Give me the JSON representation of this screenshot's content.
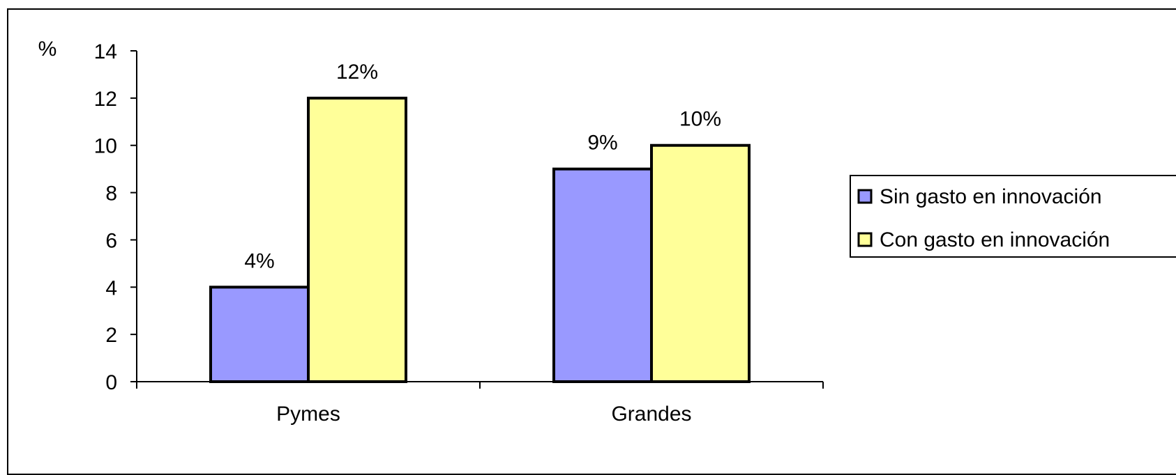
{
  "chart_data": {
    "type": "bar",
    "ylabel": "%",
    "ylim": [
      0,
      14
    ],
    "yticks": [
      0,
      2,
      4,
      6,
      8,
      10,
      12,
      14
    ],
    "categories": [
      "Pymes",
      "Grandes"
    ],
    "series": [
      {
        "name": "Sin gasto en innovación",
        "color": "#9999ff",
        "values": [
          4,
          9
        ],
        "labels": [
          "4%",
          "9%"
        ]
      },
      {
        "name": "Con gasto en innovación",
        "color": "#ffff99",
        "values": [
          12,
          10
        ],
        "labels": [
          "12%",
          "10%"
        ]
      }
    ],
    "legend": "right",
    "grid": false
  }
}
